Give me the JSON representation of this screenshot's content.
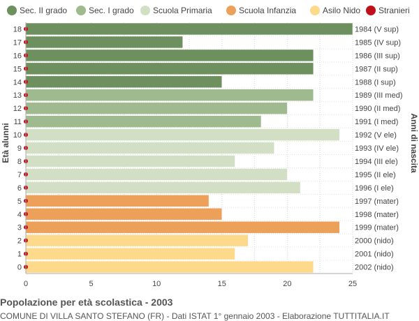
{
  "chart_data": {
    "type": "bar",
    "orientation": "horizontal",
    "title": "Popolazione per età scolastica - 2003",
    "subtitle": "COMUNE DI VILLA SANTO STEFANO (FR) - Dati ISTAT 1° gennaio 2003 - Elaborazione TUTTITALIA.IT",
    "ylabel": "Età alunni",
    "ylabel_right": "Anni di nascita",
    "xlim": [
      0,
      25
    ],
    "xticks": [
      0,
      5,
      10,
      15,
      20,
      25
    ],
    "grid": true,
    "legend_position": "top",
    "legend": [
      {
        "name": "Sec. II grado",
        "color": "#6e8f5e"
      },
      {
        "name": "Sec. I grado",
        "color": "#9fba8f"
      },
      {
        "name": "Scuola Primaria",
        "color": "#d3dfc5"
      },
      {
        "name": "Scuola Infanzia",
        "color": "#eda05a"
      },
      {
        "name": "Asilo Nido",
        "color": "#fdd98c"
      },
      {
        "name": "Stranieri",
        "color": "#c0101a"
      }
    ],
    "rows": [
      {
        "age": "18",
        "birth": "1984 (V sup)",
        "value": 25,
        "group": 0,
        "stranieri": 0
      },
      {
        "age": "17",
        "birth": "1985 (IV sup)",
        "value": 12,
        "group": 0,
        "stranieri": 0
      },
      {
        "age": "16",
        "birth": "1986 (III sup)",
        "value": 22,
        "group": 0,
        "stranieri": 0
      },
      {
        "age": "15",
        "birth": "1987 (II sup)",
        "value": 22,
        "group": 0,
        "stranieri": 0
      },
      {
        "age": "14",
        "birth": "1988 (I sup)",
        "value": 15,
        "group": 0,
        "stranieri": 0
      },
      {
        "age": "13",
        "birth": "1989 (III med)",
        "value": 22,
        "group": 1,
        "stranieri": 0
      },
      {
        "age": "12",
        "birth": "1990 (II med)",
        "value": 20,
        "group": 1,
        "stranieri": 0
      },
      {
        "age": "11",
        "birth": "1991 (I med)",
        "value": 18,
        "group": 1,
        "stranieri": 0
      },
      {
        "age": "10",
        "birth": "1992 (V ele)",
        "value": 24,
        "group": 2,
        "stranieri": 0
      },
      {
        "age": "9",
        "birth": "1993 (IV ele)",
        "value": 19,
        "group": 2,
        "stranieri": 0
      },
      {
        "age": "8",
        "birth": "1994 (III ele)",
        "value": 16,
        "group": 2,
        "stranieri": 0
      },
      {
        "age": "7",
        "birth": "1995 (II ele)",
        "value": 20,
        "group": 2,
        "stranieri": 0
      },
      {
        "age": "6",
        "birth": "1996 (I ele)",
        "value": 21,
        "group": 2,
        "stranieri": 0
      },
      {
        "age": "5",
        "birth": "1997 (mater)",
        "value": 14,
        "group": 3,
        "stranieri": 0
      },
      {
        "age": "4",
        "birth": "1998 (mater)",
        "value": 15,
        "group": 3,
        "stranieri": 0
      },
      {
        "age": "3",
        "birth": "1999 (mater)",
        "value": 24,
        "group": 3,
        "stranieri": 0
      },
      {
        "age": "2",
        "birth": "2000 (nido)",
        "value": 17,
        "group": 4,
        "stranieri": 0
      },
      {
        "age": "1",
        "birth": "2001 (nido)",
        "value": 16,
        "group": 4,
        "stranieri": 0
      },
      {
        "age": "0",
        "birth": "2002 (nido)",
        "value": 22,
        "group": 4,
        "stranieri": 0
      }
    ]
  }
}
